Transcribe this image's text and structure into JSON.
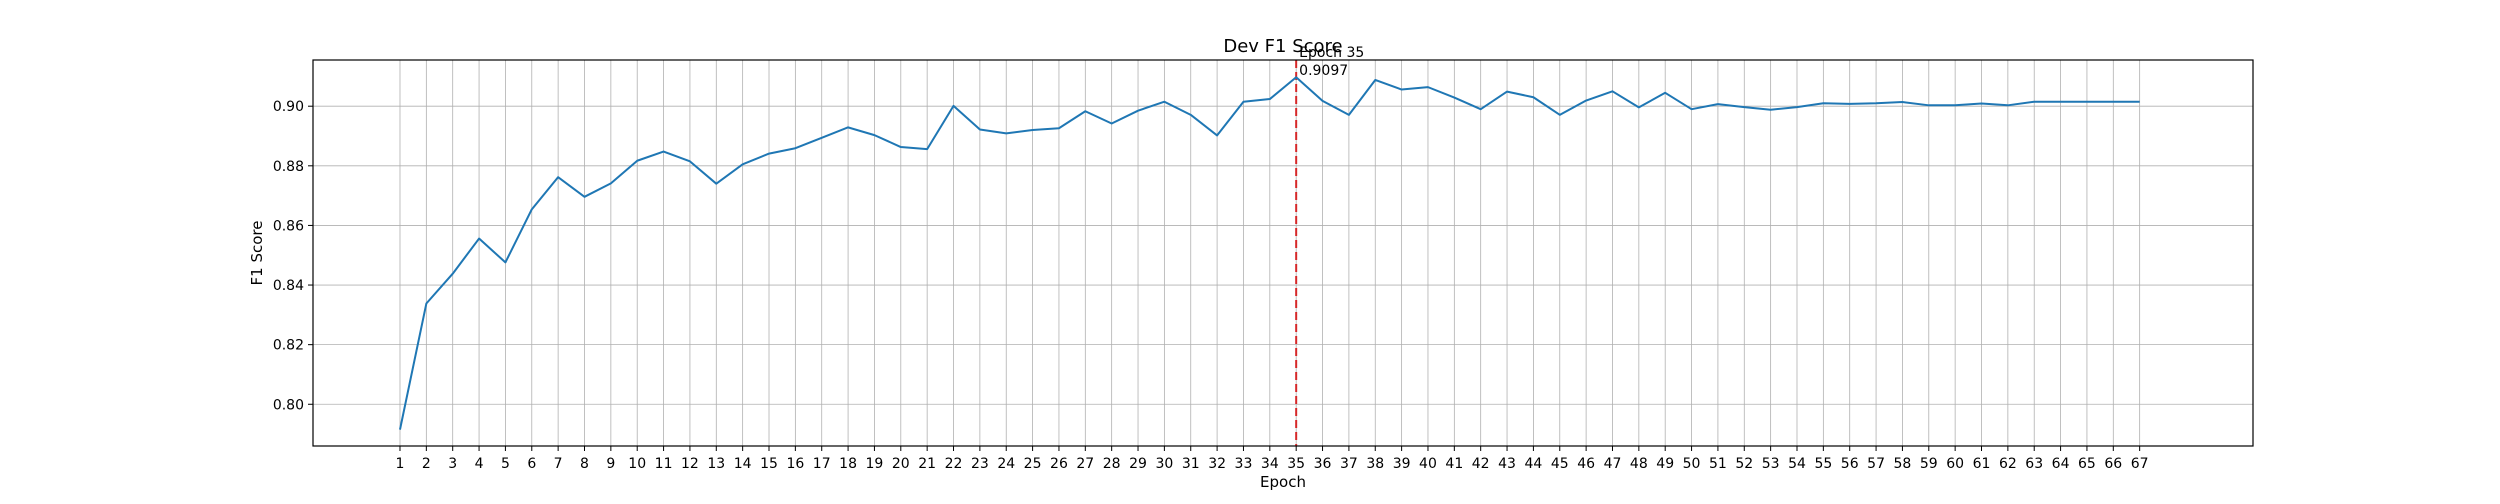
{
  "chart_data": {
    "type": "line",
    "title": "Dev F1 Score",
    "xlabel": "Epoch",
    "ylabel": "F1 Score",
    "xlim": [
      -2.3,
      71.3
    ],
    "ylim": [
      0.786,
      0.9155
    ],
    "x": [
      1,
      2,
      3,
      4,
      5,
      6,
      7,
      8,
      9,
      10,
      11,
      12,
      13,
      14,
      15,
      16,
      17,
      18,
      19,
      20,
      21,
      22,
      23,
      24,
      25,
      26,
      27,
      28,
      29,
      30,
      31,
      32,
      33,
      34,
      35,
      36,
      37,
      38,
      39,
      40,
      41,
      42,
      43,
      44,
      45,
      46,
      47,
      48,
      49,
      50,
      51,
      52,
      53,
      54,
      55,
      56,
      57,
      58,
      59,
      60,
      61,
      62,
      63,
      64,
      65,
      66,
      67
    ],
    "x_tick_labels": [
      "1",
      "2",
      "3",
      "4",
      "5",
      "6",
      "7",
      "8",
      "9",
      "10",
      "11",
      "12",
      "13",
      "14",
      "15",
      "16",
      "17",
      "18",
      "19",
      "20",
      "21",
      "22",
      "23",
      "24",
      "25",
      "26",
      "27",
      "28",
      "29",
      "30",
      "31",
      "32",
      "33",
      "34",
      "35",
      "36",
      "37",
      "38",
      "39",
      "40",
      "41",
      "42",
      "43",
      "44",
      "45",
      "46",
      "47",
      "48",
      "49",
      "50",
      "51",
      "52",
      "53",
      "54",
      "55",
      "56",
      "57",
      "58",
      "59",
      "60",
      "61",
      "62",
      "63",
      "64",
      "65",
      "66",
      "67"
    ],
    "y_ticks": [
      0.8,
      0.82,
      0.84,
      0.86,
      0.88,
      0.9
    ],
    "y_tick_labels": [
      "0.80",
      "0.82",
      "0.84",
      "0.86",
      "0.88",
      "0.90"
    ],
    "series": [
      {
        "color": "#1f77b4",
        "values": [
          0.7915,
          0.8338,
          0.8438,
          0.8556,
          0.8476,
          0.8654,
          0.8762,
          0.8696,
          0.8741,
          0.8817,
          0.8848,
          0.8815,
          0.874,
          0.8805,
          0.8841,
          0.8859,
          0.8894,
          0.8929,
          0.8903,
          0.8863,
          0.8856,
          0.9001,
          0.8922,
          0.8909,
          0.892,
          0.8926,
          0.8983,
          0.8942,
          0.8985,
          0.9015,
          0.8971,
          0.8902,
          0.9015,
          0.9024,
          0.9097,
          0.9018,
          0.8971,
          0.9088,
          0.9056,
          0.9064,
          0.9029,
          0.899,
          0.9049,
          0.903,
          0.8971,
          0.9019,
          0.905,
          0.8996,
          0.9045,
          0.899,
          0.9007,
          0.8997,
          0.8988,
          0.8997,
          0.901,
          0.9008,
          0.901,
          0.9014,
          0.9003,
          0.9003,
          0.9009,
          0.9003,
          0.9015,
          0.9015,
          0.9015,
          0.9015,
          0.9015
        ]
      }
    ],
    "best_marker": {
      "x": 35,
      "color": "#d62728",
      "label_line1": "Epoch 35",
      "label_line2": "0.9097"
    },
    "grid": true,
    "legend": "none"
  }
}
